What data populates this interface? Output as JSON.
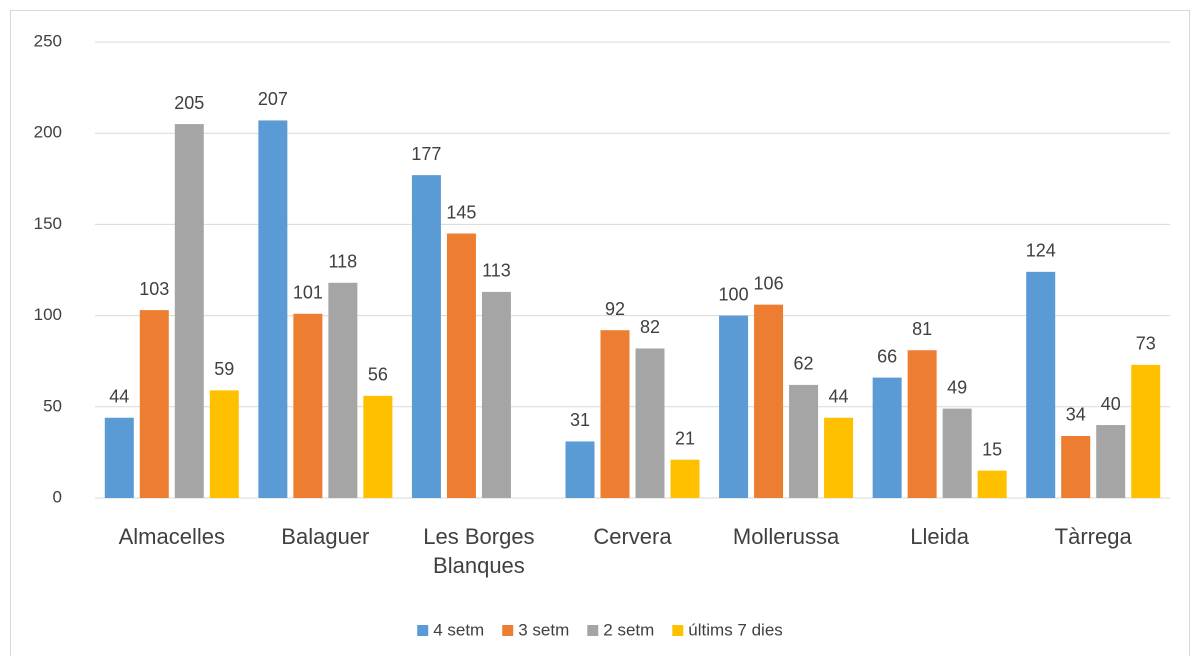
{
  "chart_data": {
    "type": "bar",
    "categories": [
      "Almacelles",
      "Balaguer",
      "Les Borges Blanques",
      "Cervera",
      "Mollerussa",
      "Lleida",
      "Tàrrega"
    ],
    "series": [
      {
        "name": "4 setm",
        "color": "#5b9bd5",
        "values": [
          44,
          207,
          177,
          31,
          100,
          66,
          124
        ]
      },
      {
        "name": "3 setm",
        "color": "#ed7d31",
        "values": [
          103,
          101,
          145,
          92,
          106,
          81,
          34
        ]
      },
      {
        "name": "2 setm",
        "color": "#a5a5a5",
        "values": [
          205,
          118,
          113,
          82,
          62,
          49,
          40
        ]
      },
      {
        "name": "últims 7 dies",
        "color": "#ffc000",
        "values": [
          59,
          56,
          null,
          21,
          44,
          15,
          73
        ]
      }
    ],
    "ylim": [
      0,
      250
    ],
    "yticks": [
      0,
      50,
      100,
      150,
      200,
      250
    ],
    "grid": true,
    "legend": "bottom"
  }
}
